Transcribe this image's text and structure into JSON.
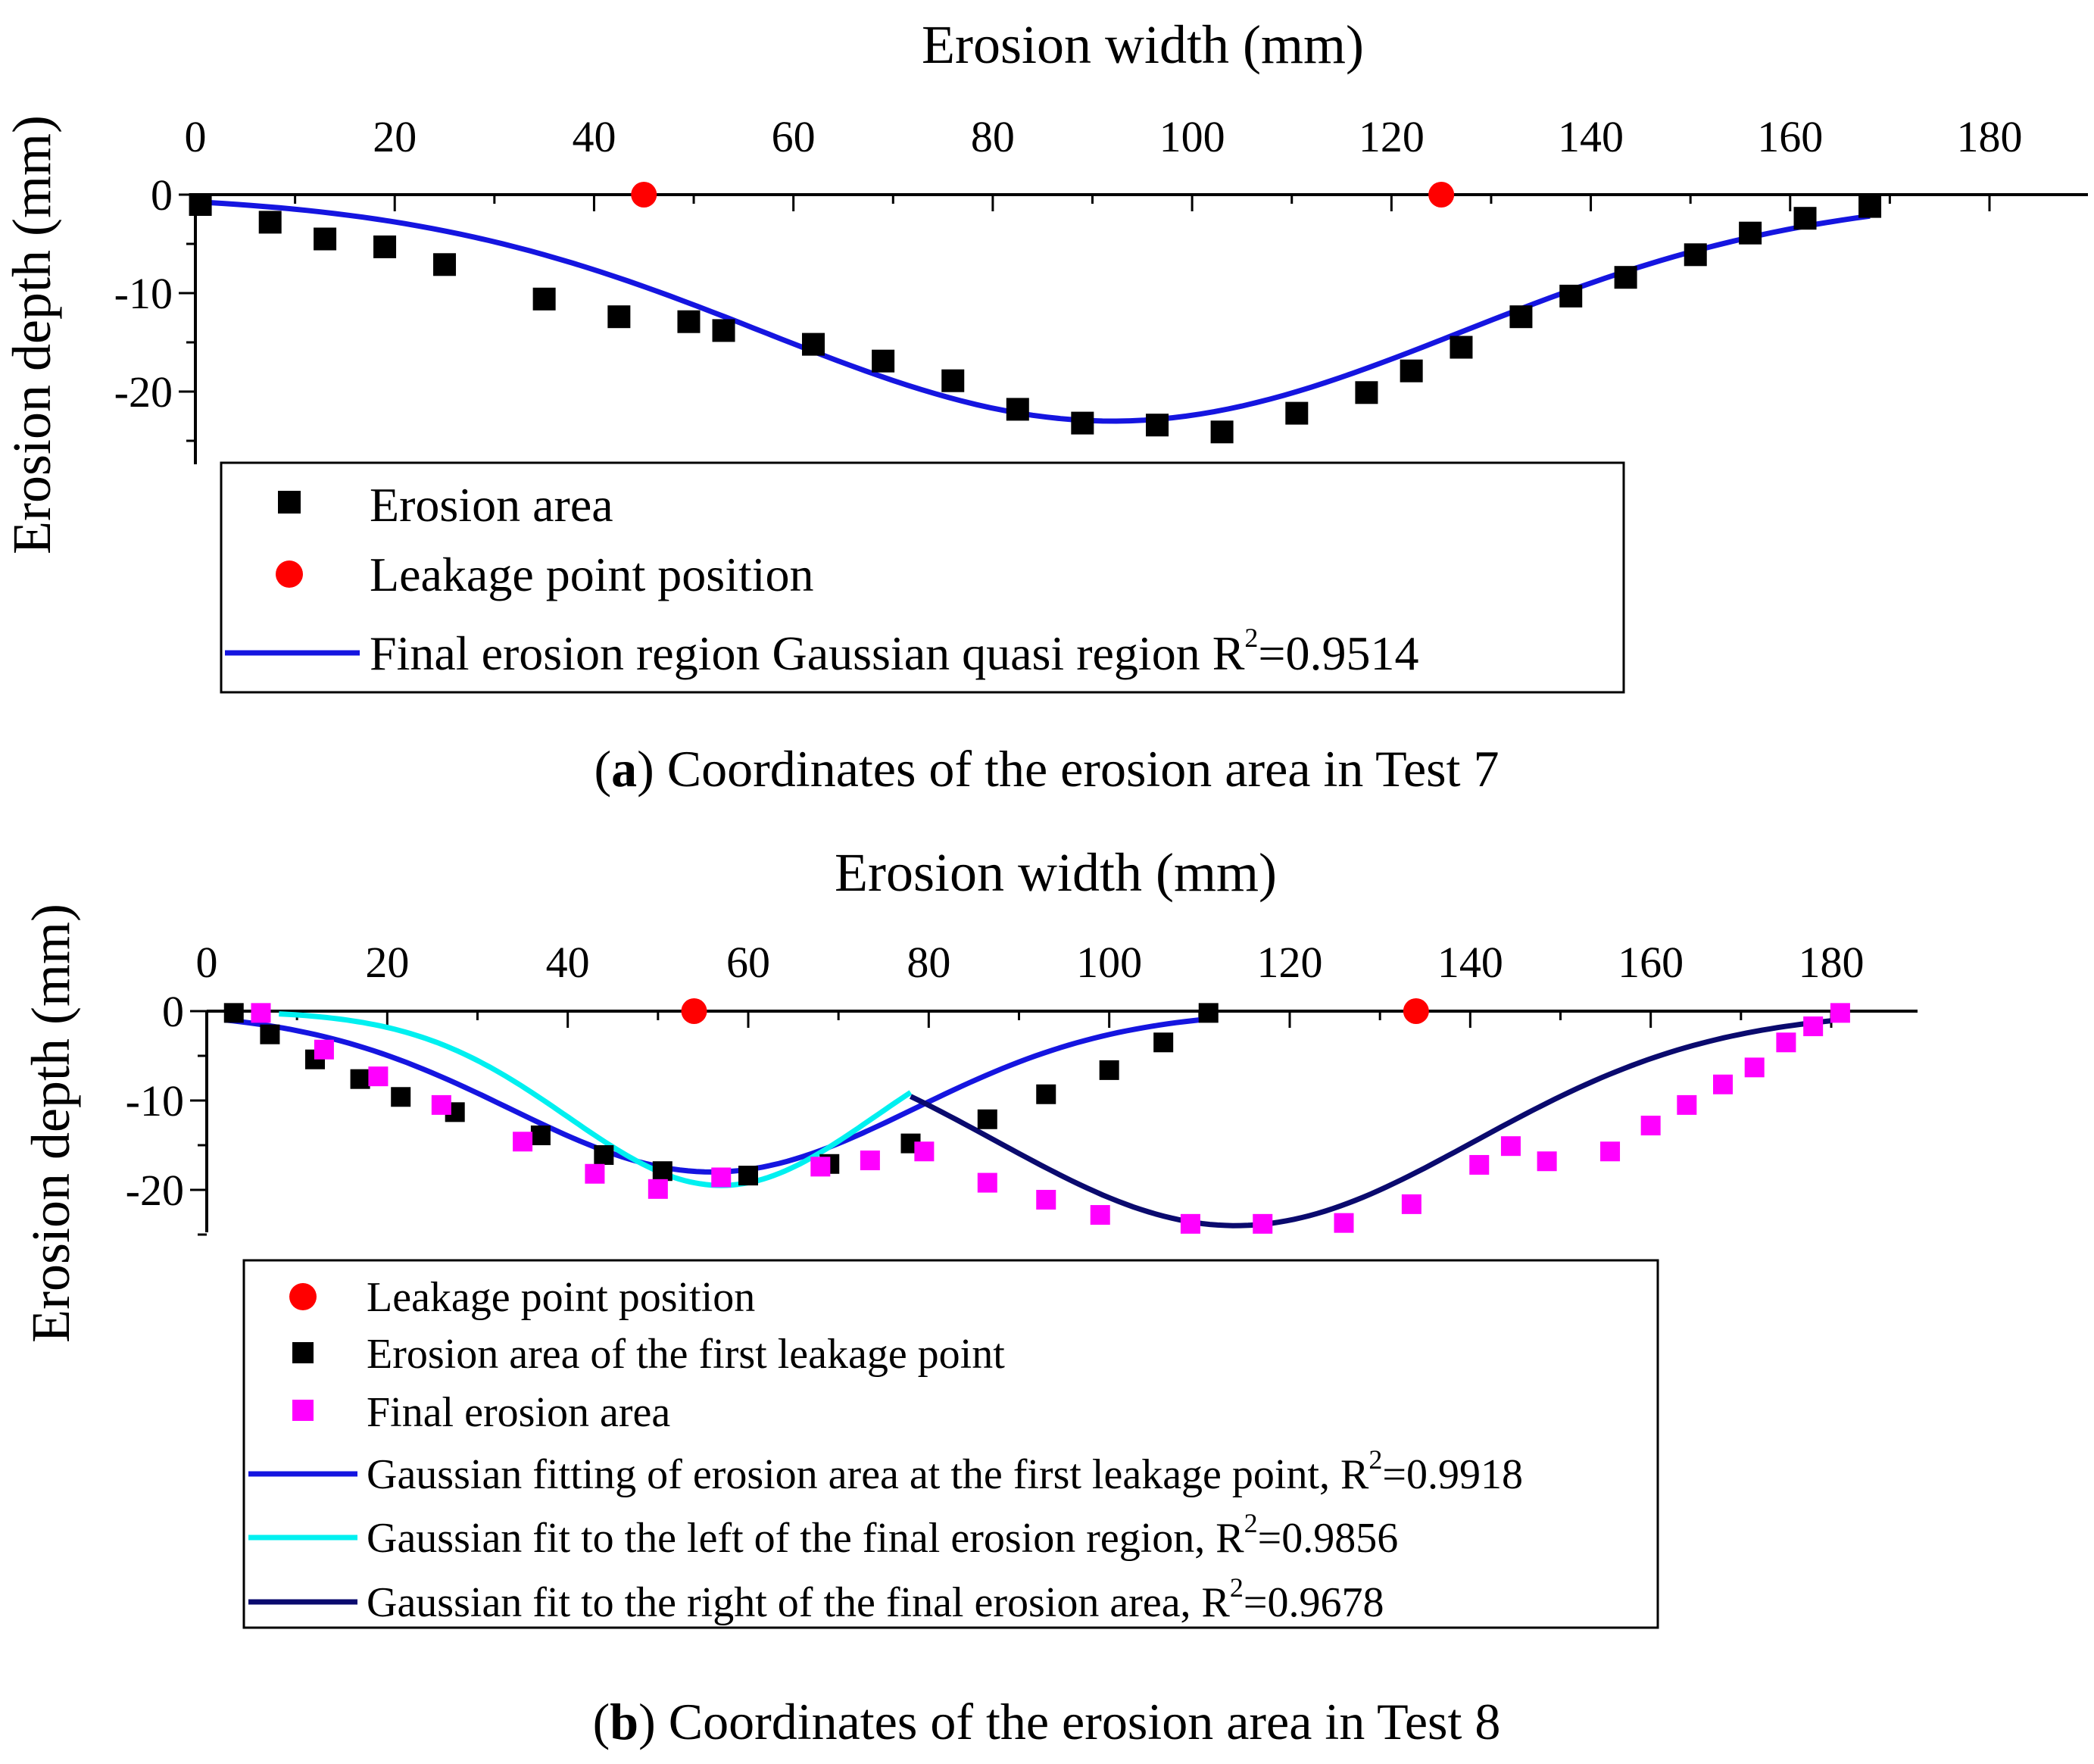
{
  "figure": {
    "caption_a_letter": "a",
    "caption_a_text": "Coordinates of the erosion area in Test 7",
    "caption_b_letter": "b",
    "caption_b_text": "Coordinates of the erosion area in Test 8"
  },
  "colors": {
    "axis": "#000000",
    "erosion_points": "#000000",
    "leak_points": "#ff0000",
    "final_points": "#ff00ff",
    "blue_fit": "#1515e0",
    "cyan_fit": "#00f0f0",
    "navy_fit": "#0a0a6e"
  },
  "chart_data": [
    {
      "id": "test7",
      "type": "scatter",
      "title": "",
      "xlabel": "Erosion width (mm)",
      "ylabel": "Erosion depth (mm)",
      "xlim": [
        0,
        190
      ],
      "ylim": [
        -27.5,
        0
      ],
      "xticks": [
        0,
        20,
        40,
        60,
        80,
        100,
        120,
        140,
        160,
        180
      ],
      "yticks": [
        0,
        -10,
        -20
      ],
      "legend": {
        "erosion_area": "Erosion area",
        "leakage": "Leakage point position",
        "fit_text": "Final erosion region Gaussian quasi region R",
        "fit_sup": "2",
        "fit_value": "=0.9514"
      },
      "series": [
        {
          "name": "Erosion area",
          "marker": "square",
          "color": "#000000",
          "points": [
            [
              0.5,
              -1
            ],
            [
              7.5,
              -2.8
            ],
            [
              13,
              -4.5
            ],
            [
              19,
              -5.3
            ],
            [
              25,
              -7.1
            ],
            [
              35,
              -10.6
            ],
            [
              42.5,
              -12.4
            ],
            [
              49.5,
              -12.9
            ],
            [
              53,
              -13.8
            ],
            [
              62,
              -15.2
            ],
            [
              69,
              -16.9
            ],
            [
              76,
              -18.9
            ],
            [
              82.5,
              -21.8
            ],
            [
              89,
              -23.2
            ],
            [
              96.5,
              -23.4
            ],
            [
              103,
              -24.1
            ],
            [
              110.5,
              -22.2
            ],
            [
              117.5,
              -20.1
            ],
            [
              122,
              -17.9
            ],
            [
              127,
              -15.5
            ],
            [
              133,
              -12.4
            ],
            [
              138,
              -10.3
            ],
            [
              143.5,
              -8.4
            ],
            [
              150.5,
              -6.1
            ],
            [
              156,
              -3.9
            ],
            [
              161.5,
              -2.4
            ],
            [
              168,
              -1.2
            ]
          ]
        },
        {
          "name": "Leakage point position",
          "marker": "circle",
          "color": "#ff0000",
          "points": [
            [
              45,
              0
            ],
            [
              125,
              0
            ]
          ]
        },
        {
          "name": "Final erosion region Gaussian quasi region",
          "type": "line",
          "color": "#1515e0",
          "gaussian": {
            "center": 92,
            "amplitude": -23,
            "sigma": 35
          },
          "x_range": [
            0,
            168
          ]
        }
      ]
    },
    {
      "id": "test8",
      "type": "scatter",
      "title": "",
      "xlabel": "Erosion width (mm)",
      "ylabel": "Erosion depth (mm)",
      "xlim": [
        0,
        190
      ],
      "ylim": [
        -25,
        0
      ],
      "xticks": [
        0,
        20,
        40,
        60,
        80,
        100,
        120,
        140,
        160,
        180
      ],
      "yticks": [
        0,
        -10,
        -20
      ],
      "legend": {
        "leakage": "Leakage point position",
        "first_area": "Erosion area of the first leakage point",
        "final_area": "Final erosion area",
        "fit1_text": "Gaussian fitting of erosion area at the first leakage point,  R",
        "fit1_sup": "2",
        "fit1_value": "=0.9918",
        "fit2_text": "Gaussian fit to the left of the final erosion region,  R",
        "fit2_sup": "2",
        "fit2_value": "=0.9856",
        "fit3_text": "Gaussian fit to the right of the final erosion area,  R",
        "fit3_sup": "2",
        "fit3_value": "=0.9678"
      },
      "series": [
        {
          "name": "Leakage point position",
          "marker": "circle",
          "color": "#ff0000",
          "points": [
            [
              54,
              0
            ],
            [
              134,
              0
            ]
          ]
        },
        {
          "name": "Erosion area of the first leakage point",
          "marker": "square",
          "color": "#000000",
          "points": [
            [
              3,
              -0.2
            ],
            [
              7,
              -2.6
            ],
            [
              12,
              -5.4
            ],
            [
              17,
              -7.6
            ],
            [
              21.5,
              -9.6
            ],
            [
              27.5,
              -11.3
            ],
            [
              37,
              -13.9
            ],
            [
              44,
              -16.1
            ],
            [
              50.5,
              -17.9
            ],
            [
              60,
              -18.4
            ],
            [
              69,
              -17.1
            ],
            [
              78,
              -14.8
            ],
            [
              86.5,
              -12.1
            ],
            [
              93,
              -9.3
            ],
            [
              100,
              -6.6
            ],
            [
              106,
              -3.5
            ],
            [
              111,
              -0.2
            ]
          ]
        },
        {
          "name": "Final erosion area",
          "marker": "square",
          "color": "#ff00ff",
          "points": [
            [
              6,
              -0.2
            ],
            [
              13,
              -4.3
            ],
            [
              19,
              -7.3
            ],
            [
              26,
              -10.5
            ],
            [
              35,
              -14.6
            ],
            [
              43,
              -18.2
            ],
            [
              50,
              -19.9
            ],
            [
              57,
              -18.6
            ],
            [
              68,
              -17.4
            ],
            [
              73.5,
              -16.7
            ],
            [
              79.5,
              -15.7
            ],
            [
              86.5,
              -19.2
            ],
            [
              93,
              -21.1
            ],
            [
              99,
              -22.8
            ],
            [
              109,
              -23.8
            ],
            [
              117,
              -23.8
            ],
            [
              126,
              -23.7
            ],
            [
              133.5,
              -21.6
            ],
            [
              141,
              -17.2
            ],
            [
              144.5,
              -15.1
            ],
            [
              148.5,
              -16.8
            ],
            [
              155.5,
              -15.7
            ],
            [
              160,
              -12.8
            ],
            [
              164,
              -10.5
            ],
            [
              168,
              -8.2
            ],
            [
              171.5,
              -6.3
            ],
            [
              175,
              -3.5
            ],
            [
              178,
              -1.7
            ],
            [
              181,
              -0.2
            ]
          ]
        },
        {
          "name": "Gaussian fitting of erosion area at the first leakage point",
          "type": "line",
          "color": "#1515e0",
          "gaussian": {
            "center": 56,
            "amplitude": -18,
            "sigma": 22.4
          },
          "x_range": [
            2,
            112
          ]
        },
        {
          "name": "Gaussian fit to the left of the final erosion region",
          "type": "line",
          "color": "#00f0f0",
          "gaussian": {
            "center": 57,
            "amplitude": -19.5,
            "sigma": 17
          },
          "x_range": [
            8,
            78
          ]
        },
        {
          "name": "Gaussian fit to the right of the final erosion area",
          "type": "line",
          "color": "#0a0a6e",
          "gaussian": {
            "center": 114,
            "amplitude": -24,
            "sigma": 26.5
          },
          "x_range": [
            78,
            180
          ]
        }
      ]
    }
  ]
}
